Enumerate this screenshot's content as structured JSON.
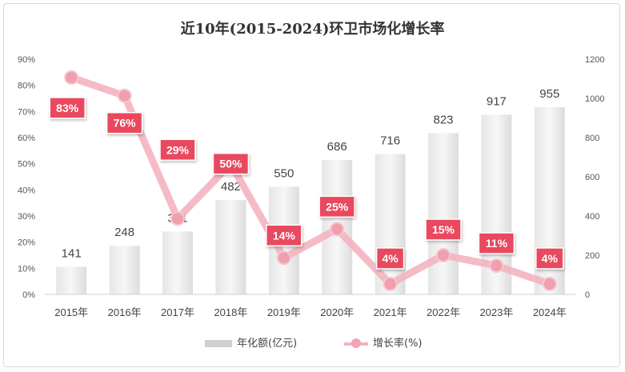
{
  "chart_data": {
    "type": "bar",
    "title": "近10年(2015-2024)环卫市场化增长率",
    "categories": [
      "2015年",
      "2016年",
      "2017年",
      "2018年",
      "2019年",
      "2020年",
      "2021年",
      "2022年",
      "2023年",
      "2024年"
    ],
    "series": [
      {
        "name": "年化额(亿元)",
        "type": "bar",
        "axis": "right",
        "values": [
          141,
          248,
          321,
          482,
          550,
          686,
          716,
          823,
          917,
          955
        ],
        "color": "#d9d9d9"
      },
      {
        "name": "增长率(%)",
        "type": "line",
        "axis": "left",
        "values": [
          83,
          76,
          29,
          50,
          14,
          25,
          4,
          15,
          11,
          4
        ],
        "labels": [
          "83%",
          "76%",
          "29%",
          "50%",
          "14%",
          "25%",
          "4%",
          "15%",
          "11%",
          "4%"
        ],
        "color": "#f4b4bf"
      }
    ],
    "left_axis": {
      "min": 0,
      "max": 90,
      "step": 10,
      "ticks": [
        "0%",
        "10%",
        "20%",
        "30%",
        "40%",
        "50%",
        "60%",
        "70%",
        "80%",
        "90%"
      ]
    },
    "right_axis": {
      "min": 0,
      "max": 1200,
      "step": 200,
      "ticks": [
        "0",
        "200",
        "400",
        "600",
        "800",
        "1000",
        "1200"
      ]
    },
    "label_color": "#e84a5f",
    "grid": false,
    "legend_position": "bottom"
  }
}
